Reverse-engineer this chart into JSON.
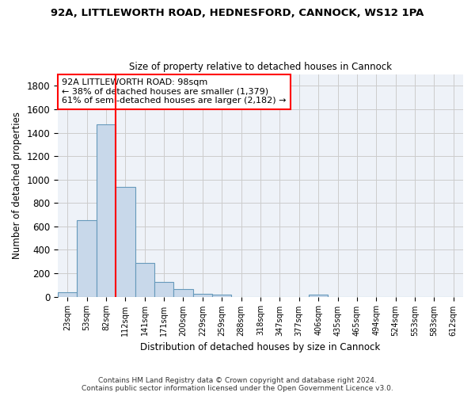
{
  "title_line1": "92A, LITTLEWORTH ROAD, HEDNESFORD, CANNOCK, WS12 1PA",
  "title_line2": "Size of property relative to detached houses in Cannock",
  "xlabel": "Distribution of detached houses by size in Cannock",
  "ylabel": "Number of detached properties",
  "footnote": "Contains HM Land Registry data © Crown copyright and database right 2024.\nContains public sector information licensed under the Open Government Licence v3.0.",
  "bin_labels": [
    "23sqm",
    "53sqm",
    "82sqm",
    "112sqm",
    "141sqm",
    "171sqm",
    "200sqm",
    "229sqm",
    "259sqm",
    "288sqm",
    "318sqm",
    "347sqm",
    "377sqm",
    "406sqm",
    "435sqm",
    "465sqm",
    "494sqm",
    "524sqm",
    "553sqm",
    "583sqm",
    "612sqm"
  ],
  "bar_values": [
    40,
    650,
    1470,
    935,
    290,
    125,
    65,
    25,
    15,
    0,
    0,
    0,
    0,
    15,
    0,
    0,
    0,
    0,
    0,
    0,
    0
  ],
  "bar_color": "#c8d8ea",
  "bar_edge_color": "#6699bb",
  "red_line_bin_index": 2,
  "annotation_line1": "92A LITTLEWORTH ROAD: 98sqm",
  "annotation_line2": "← 38% of detached houses are smaller (1,379)",
  "annotation_line3": "61% of semi-detached houses are larger (2,182) →",
  "ylim": [
    0,
    1900
  ],
  "yticks": [
    0,
    200,
    400,
    600,
    800,
    1000,
    1200,
    1400,
    1600,
    1800
  ],
  "grid_color": "#cccccc",
  "background_color": "#eef2f8"
}
